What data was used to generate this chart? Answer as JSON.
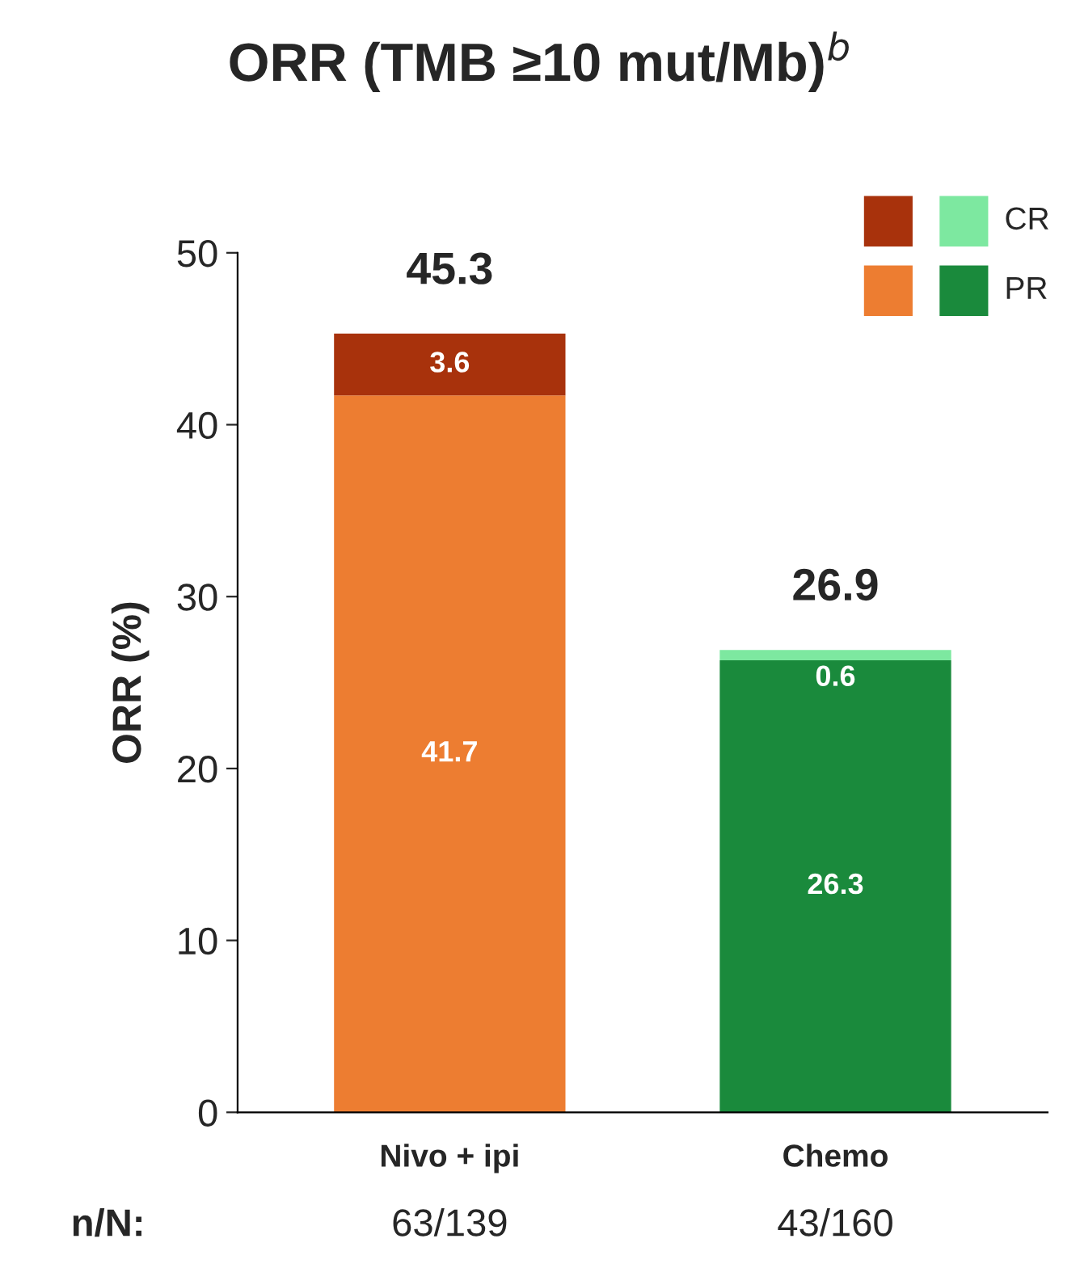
{
  "chart_data": {
    "type": "bar",
    "title": "ORR (TMB ≥10 mut/Mb)$^{b}$",
    "ylabel": "ORR (%)",
    "categories": [
      "Nivo + ipi",
      "Chemo"
    ],
    "series": [
      {
        "name": "PR",
        "colors": [
          "#ed7d31",
          "#1a8a3c"
        ],
        "values": [
          41.7,
          26.3
        ]
      },
      {
        "name": "CR",
        "colors": [
          "#a8320c",
          "#7de8a0"
        ],
        "values": [
          3.6,
          0.6
        ]
      }
    ],
    "stacked": true,
    "data_labels": true,
    "totals": [
      "45.3",
      "26.9"
    ],
    "ylim": [
      0,
      50
    ],
    "yticks": [
      0,
      10,
      20,
      30,
      40,
      50
    ],
    "grid": false,
    "legend": "top right",
    "annotations": [
      "n/N:",
      "63/139",
      "43/160"
    ]
  }
}
